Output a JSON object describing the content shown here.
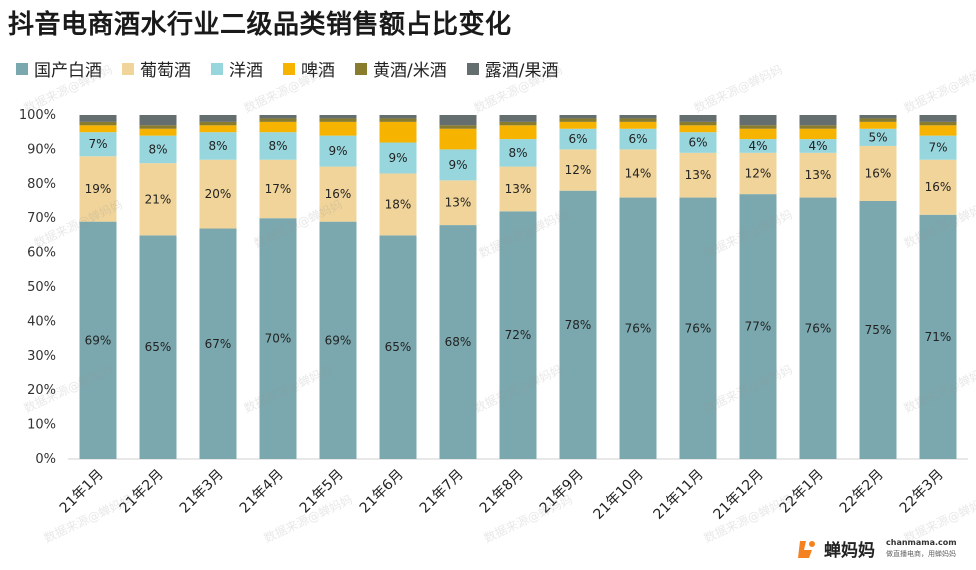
{
  "chart_data": {
    "type": "bar",
    "stacked": true,
    "title": "抖音电商酒水行业二级品类销售额占比变化",
    "categories": [
      "21年1月",
      "21年2月",
      "21年3月",
      "21年4月",
      "21年5月",
      "21年6月",
      "21年7月",
      "21年8月",
      "21年9月",
      "21年10月",
      "21年11月",
      "21年12月",
      "22年1月",
      "22年2月",
      "22年3月"
    ],
    "series": [
      {
        "name": "国产白酒",
        "color": "#7aa8ae",
        "values": [
          69,
          65,
          67,
          70,
          69,
          65,
          68,
          72,
          78,
          76,
          76,
          77,
          76,
          75,
          71
        ]
      },
      {
        "name": "葡萄酒",
        "color": "#f0d49a",
        "values": [
          19,
          21,
          20,
          17,
          16,
          18,
          13,
          13,
          12,
          14,
          13,
          12,
          13,
          16,
          16
        ]
      },
      {
        "name": "洋酒",
        "color": "#97d6dc",
        "values": [
          7,
          8,
          8,
          8,
          9,
          9,
          9,
          8,
          6,
          6,
          6,
          4,
          4,
          5,
          7
        ]
      },
      {
        "name": "啤酒",
        "color": "#f6b400",
        "values": [
          2,
          2,
          2,
          3,
          4,
          6,
          6,
          4,
          2,
          2,
          2,
          3,
          3,
          2,
          3
        ]
      },
      {
        "name": "黄酒/米酒",
        "color": "#8a7c2d",
        "values": [
          1,
          1,
          1,
          1,
          1,
          1,
          1,
          1,
          1,
          1,
          1,
          1,
          1,
          1,
          1
        ]
      },
      {
        "name": "露酒/果酒",
        "color": "#656e6e",
        "values": [
          2,
          3,
          2,
          1,
          1,
          1,
          3,
          2,
          1,
          1,
          2,
          3,
          3,
          1,
          2
        ]
      }
    ],
    "labels": [
      [
        "69%",
        "65%",
        "67%",
        "70%",
        "69%",
        "65%",
        "68%",
        "72%",
        "78%",
        "76%",
        "76%",
        "77%",
        "76%",
        "75%",
        "71%"
      ],
      [
        "19%",
        "21%",
        "20%",
        "17%",
        "16%",
        "18%",
        "13%",
        "13%",
        "12%",
        "14%",
        "13%",
        "12%",
        "13%",
        "16%",
        "16%"
      ],
      [
        "7%",
        "8%",
        "8%",
        "8%",
        "9%",
        "9%",
        "9%",
        "8%",
        "6%",
        "6%",
        "6%",
        "4%",
        "4%",
        "5%",
        "7%"
      ]
    ],
    "y_ticks": [
      "0%",
      "10%",
      "20%",
      "30%",
      "40%",
      "50%",
      "60%",
      "70%",
      "80%",
      "90%",
      "100%"
    ],
    "ylim": [
      0,
      100
    ],
    "legend_position": "top-left"
  },
  "brand": {
    "name": "蝉妈妈",
    "site": "chanmama.com",
    "slogan": "做直播电商，用蝉妈妈"
  },
  "watermark_text": "数据来源@蝉妈妈"
}
